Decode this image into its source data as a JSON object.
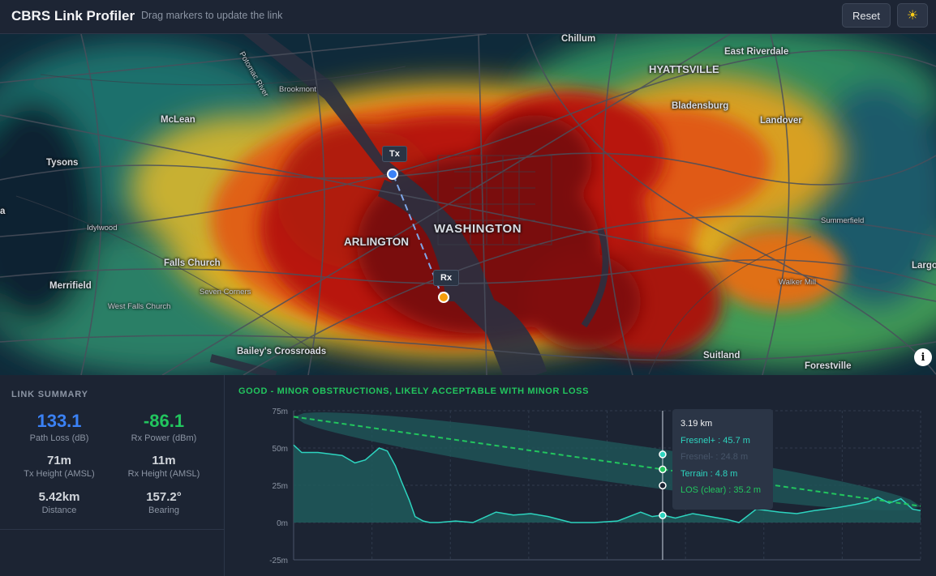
{
  "header": {
    "title": "CBRS Link Profiler",
    "subtitle": "Drag markers to update the link",
    "reset_label": "Reset",
    "theme_icon": "sun-icon"
  },
  "map": {
    "places": [
      {
        "name": "Chillum",
        "style": "normal"
      },
      {
        "name": "HYATTSVILLE",
        "style": "caps"
      },
      {
        "name": "East Riverdale",
        "style": "normal"
      },
      {
        "name": "Brookmont",
        "style": "small"
      },
      {
        "name": "Bladensburg",
        "style": "normal"
      },
      {
        "name": "McLean",
        "style": "normal"
      },
      {
        "name": "Landover",
        "style": "normal"
      },
      {
        "name": "Tysons",
        "style": "normal"
      },
      {
        "name": "WASHINGTON",
        "style": "big"
      },
      {
        "name": "ARLINGTON",
        "style": "caps"
      },
      {
        "name": "Idylwood",
        "style": "small"
      },
      {
        "name": "Summerfield",
        "style": "small"
      },
      {
        "name": "Falls Church",
        "style": "normal"
      },
      {
        "name": "Largo",
        "style": "normal"
      },
      {
        "name": "Merrifield",
        "style": "normal"
      },
      {
        "name": "Seven Corners",
        "style": "small"
      },
      {
        "name": "Walker Mill",
        "style": "small"
      },
      {
        "name": "West Falls Church",
        "style": "small"
      },
      {
        "name": "Bailey's Crossroads",
        "style": "normal"
      },
      {
        "name": "Suitland",
        "style": "normal"
      },
      {
        "name": "Forestville",
        "style": "normal"
      },
      {
        "name": "Potomac River",
        "style": "small"
      },
      {
        "name": "a",
        "style": "normal"
      }
    ],
    "tx_label": "Tx",
    "rx_label": "Rx",
    "tx_color": "#3b82f6",
    "rx_color": "#f59e0b",
    "info_label": "i"
  },
  "summary": {
    "heading": "LINK SUMMARY",
    "path_loss": {
      "value": "133.1",
      "label": "Path Loss (dB)",
      "color": "#3b82f6"
    },
    "rx_power": {
      "value": "-86.1",
      "label": "Rx Power (dBm)",
      "color": "#22c55e"
    },
    "tx_height": {
      "value": "71m",
      "label": "Tx Height (AMSL)"
    },
    "rx_height": {
      "value": "11m",
      "label": "Rx Height (AMSL)"
    },
    "distance": {
      "value": "5.42km",
      "label": "Distance"
    },
    "bearing": {
      "value": "157.2°",
      "label": "Bearing"
    }
  },
  "profile": {
    "status": "GOOD - MINOR OBSTRUCTIONS, LIKELY ACCEPTABLE WITH MINOR LOSS",
    "status_color": "#22c55e",
    "tooltip": {
      "distance": "3.19 km",
      "fresnel_plus": "Fresnel+ : 45.7 m",
      "fresnel_minus": "Fresnel- : 24.8 m",
      "terrain": "Terrain : 4.8 m",
      "los": "LOS (clear) : 35.2 m"
    }
  },
  "chart_data": {
    "type": "area",
    "x_unit": "km",
    "y_unit": "m",
    "ylim": [
      -25,
      75
    ],
    "yticks": [
      "75m",
      "50m",
      "25m",
      "0m",
      "-25m"
    ],
    "xlim": [
      0,
      5.42
    ],
    "grid": true,
    "cursor_x": 3.19,
    "series": [
      {
        "name": "LOS",
        "color": "#22c55e",
        "x": [
          0,
          5.42
        ],
        "y": [
          71,
          11
        ]
      },
      {
        "name": "Fresnel+",
        "color": "#1f5a5c",
        "x": [
          0,
          5.42
        ],
        "y": [
          71,
          11
        ]
      },
      {
        "name": "Terrain",
        "color": "#2dd4bf",
        "x": [
          0,
          0.07,
          0.21,
          0.42,
          0.53,
          0.62,
          0.74,
          0.81,
          0.88,
          0.93,
          1.0,
          1.05,
          1.12,
          1.18,
          1.25,
          1.4,
          1.55,
          1.75,
          1.9,
          2.05,
          2.2,
          2.4,
          2.6,
          2.8,
          3.0,
          3.1,
          3.19,
          3.3,
          3.45,
          3.6,
          3.75,
          3.85,
          4.0,
          4.2,
          4.35,
          4.5,
          4.7,
          4.85,
          4.97,
          5.05,
          5.15,
          5.25,
          5.35,
          5.42
        ],
        "y": [
          52,
          47,
          47,
          45,
          40,
          42,
          50,
          48,
          38,
          28,
          15,
          4,
          1,
          0,
          0,
          1,
          0,
          7,
          5,
          6,
          4,
          0,
          0,
          1,
          7,
          4,
          5,
          3,
          6,
          4,
          2,
          0,
          9,
          7,
          6,
          8,
          10,
          12,
          14,
          17,
          13,
          16,
          9,
          8
        ]
      }
    ]
  }
}
